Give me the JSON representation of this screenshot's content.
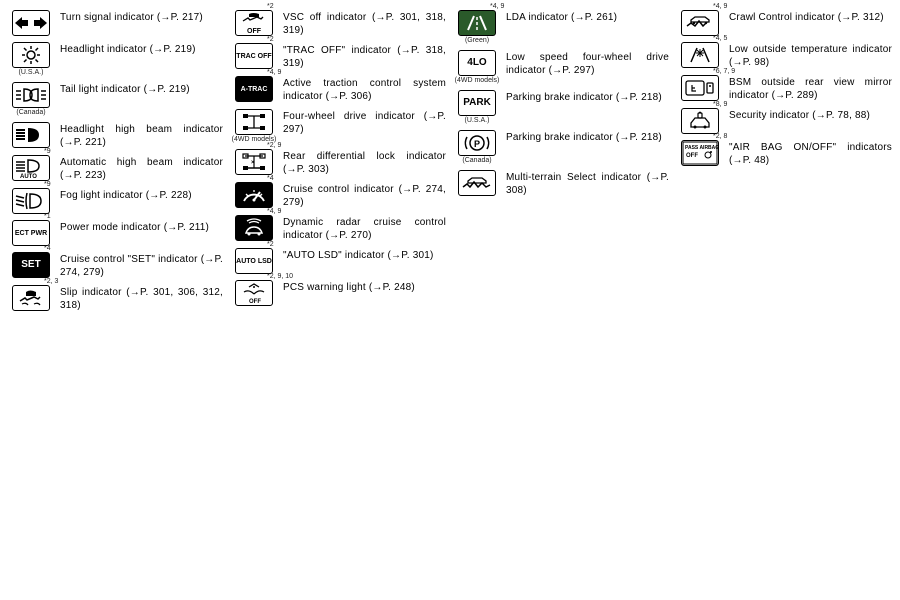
{
  "columns": [
    [
      {
        "foot": "",
        "sub": "",
        "icon": "arrows",
        "label": "Turn signal indicator (→P. 217)",
        "inv": false
      },
      {
        "foot": "",
        "sub": "(U.S.A.)",
        "icon": "headlight-sun",
        "label": "Headlight indicator (→P. 219)",
        "inv": false
      },
      {
        "foot": "",
        "sub": "(Canada)",
        "icon": "tail",
        "label": "Tail light indicator (→P. 219)",
        "inv": false
      },
      {
        "foot": "",
        "sub": "",
        "icon": "highbeam",
        "label": "Headlight high beam indicator (→P. 221)",
        "inv": false
      },
      {
        "foot": "*9",
        "sub": "",
        "icon": "autobeam",
        "label": "Automatic high beam indicator (→P. 223)",
        "inv": false
      },
      {
        "foot": "*9",
        "sub": "",
        "icon": "fog",
        "label": "Fog light indicator (→P. 228)",
        "inv": false
      },
      {
        "foot": "*1",
        "sub": "",
        "icon": "ECT PWR",
        "label": "Power mode indicator (→P. 211)",
        "inv": false,
        "textIcon": true
      },
      {
        "foot": "*4",
        "sub": "",
        "icon": "SET",
        "label": "Cruise control \"SET\" indicator (→P. 274, 279)",
        "inv": true,
        "textIcon": true
      },
      {
        "foot": "*2, 3",
        "sub": "",
        "icon": "slip",
        "label": "Slip indicator (→P. 301, 306, 312, 318)",
        "inv": false
      }
    ],
    [
      {
        "foot": "*2",
        "sub": "",
        "icon": "vscoff",
        "label": "VSC off indicator (→P. 301, 318, 319)",
        "inv": false
      },
      {
        "foot": "*2",
        "sub": "",
        "icon": "TRAC OFF",
        "label": "\"TRAC OFF\" indicator (→P. 318, 319)",
        "inv": false,
        "textIcon": true
      },
      {
        "foot": "*4, 9",
        "sub": "",
        "icon": "A-TRAC",
        "label": "Active traction control system indicator (→P. 306)",
        "inv": true,
        "textIcon": true
      },
      {
        "foot": "",
        "sub": "(4WD models)",
        "icon": "4wd",
        "label": "Four-wheel drive indicator (→P. 297)",
        "inv": false
      },
      {
        "foot": "*2, 9",
        "sub": "",
        "icon": "rearlock",
        "label": "Rear differential lock indicator (→P. 303)",
        "inv": false
      },
      {
        "foot": "*4",
        "sub": "",
        "icon": "cruise",
        "label": "Cruise control indicator (→P. 274, 279)",
        "inv": true
      },
      {
        "foot": "*4, 9",
        "sub": "",
        "icon": "radar",
        "label": "Dynamic radar cruise control indicator (→P. 270)",
        "inv": true
      },
      {
        "foot": "*2",
        "sub": "",
        "icon": "AUTO LSD",
        "label": "\"AUTO LSD\" indicator (→P. 301)",
        "inv": false,
        "textIcon": true
      },
      {
        "foot": "*2, 9, 10",
        "sub": "",
        "icon": "pcs",
        "label": "PCS warning light (→P. 248)",
        "inv": false
      }
    ],
    [
      {
        "foot": "*4, 9",
        "sub": "(Green)",
        "icon": "lda",
        "label": "LDA indicator (→P. 261)",
        "inv": false,
        "green": true
      },
      {
        "foot": "",
        "sub": "(4WD models)",
        "icon": "4LO",
        "label": "Low speed four-wheel drive indicator (→P. 297)",
        "inv": false,
        "textIcon": true
      },
      {
        "foot": "",
        "sub": "(U.S.A.)",
        "icon": "PARK",
        "label": "Parking brake indicator (→P. 218)",
        "inv": false,
        "textIcon": true
      },
      {
        "foot": "",
        "sub": "(Canada)",
        "icon": "pbrake",
        "label": "Parking brake indicator (→P. 218)",
        "inv": false
      },
      {
        "foot": "",
        "sub": "",
        "icon": "mts",
        "label": "Multi-terrain Select indicator (→P. 308)",
        "inv": false
      }
    ],
    [
      {
        "foot": "*4, 9",
        "sub": "",
        "icon": "crawl",
        "label": "Crawl Control indicator (→P. 312)",
        "inv": false
      },
      {
        "foot": "*4, 5",
        "sub": "",
        "icon": "lowtemp",
        "label": "Low outside temperature indicator (→P. 98)",
        "inv": false
      },
      {
        "foot": "*6, 7, 9",
        "sub": "",
        "icon": "bsm",
        "label": "BSM outside rear view mirror indicator (→P. 289)",
        "inv": false
      },
      {
        "foot": "*8, 9",
        "sub": "",
        "icon": "security",
        "label": "Security indicator (→P. 78, 88)",
        "inv": false
      },
      {
        "foot": "*2, 8",
        "sub": "",
        "icon": "airbag",
        "label": "\"AIR BAG ON/OFF\" indicators (→P. 48)",
        "inv": false
      }
    ]
  ]
}
